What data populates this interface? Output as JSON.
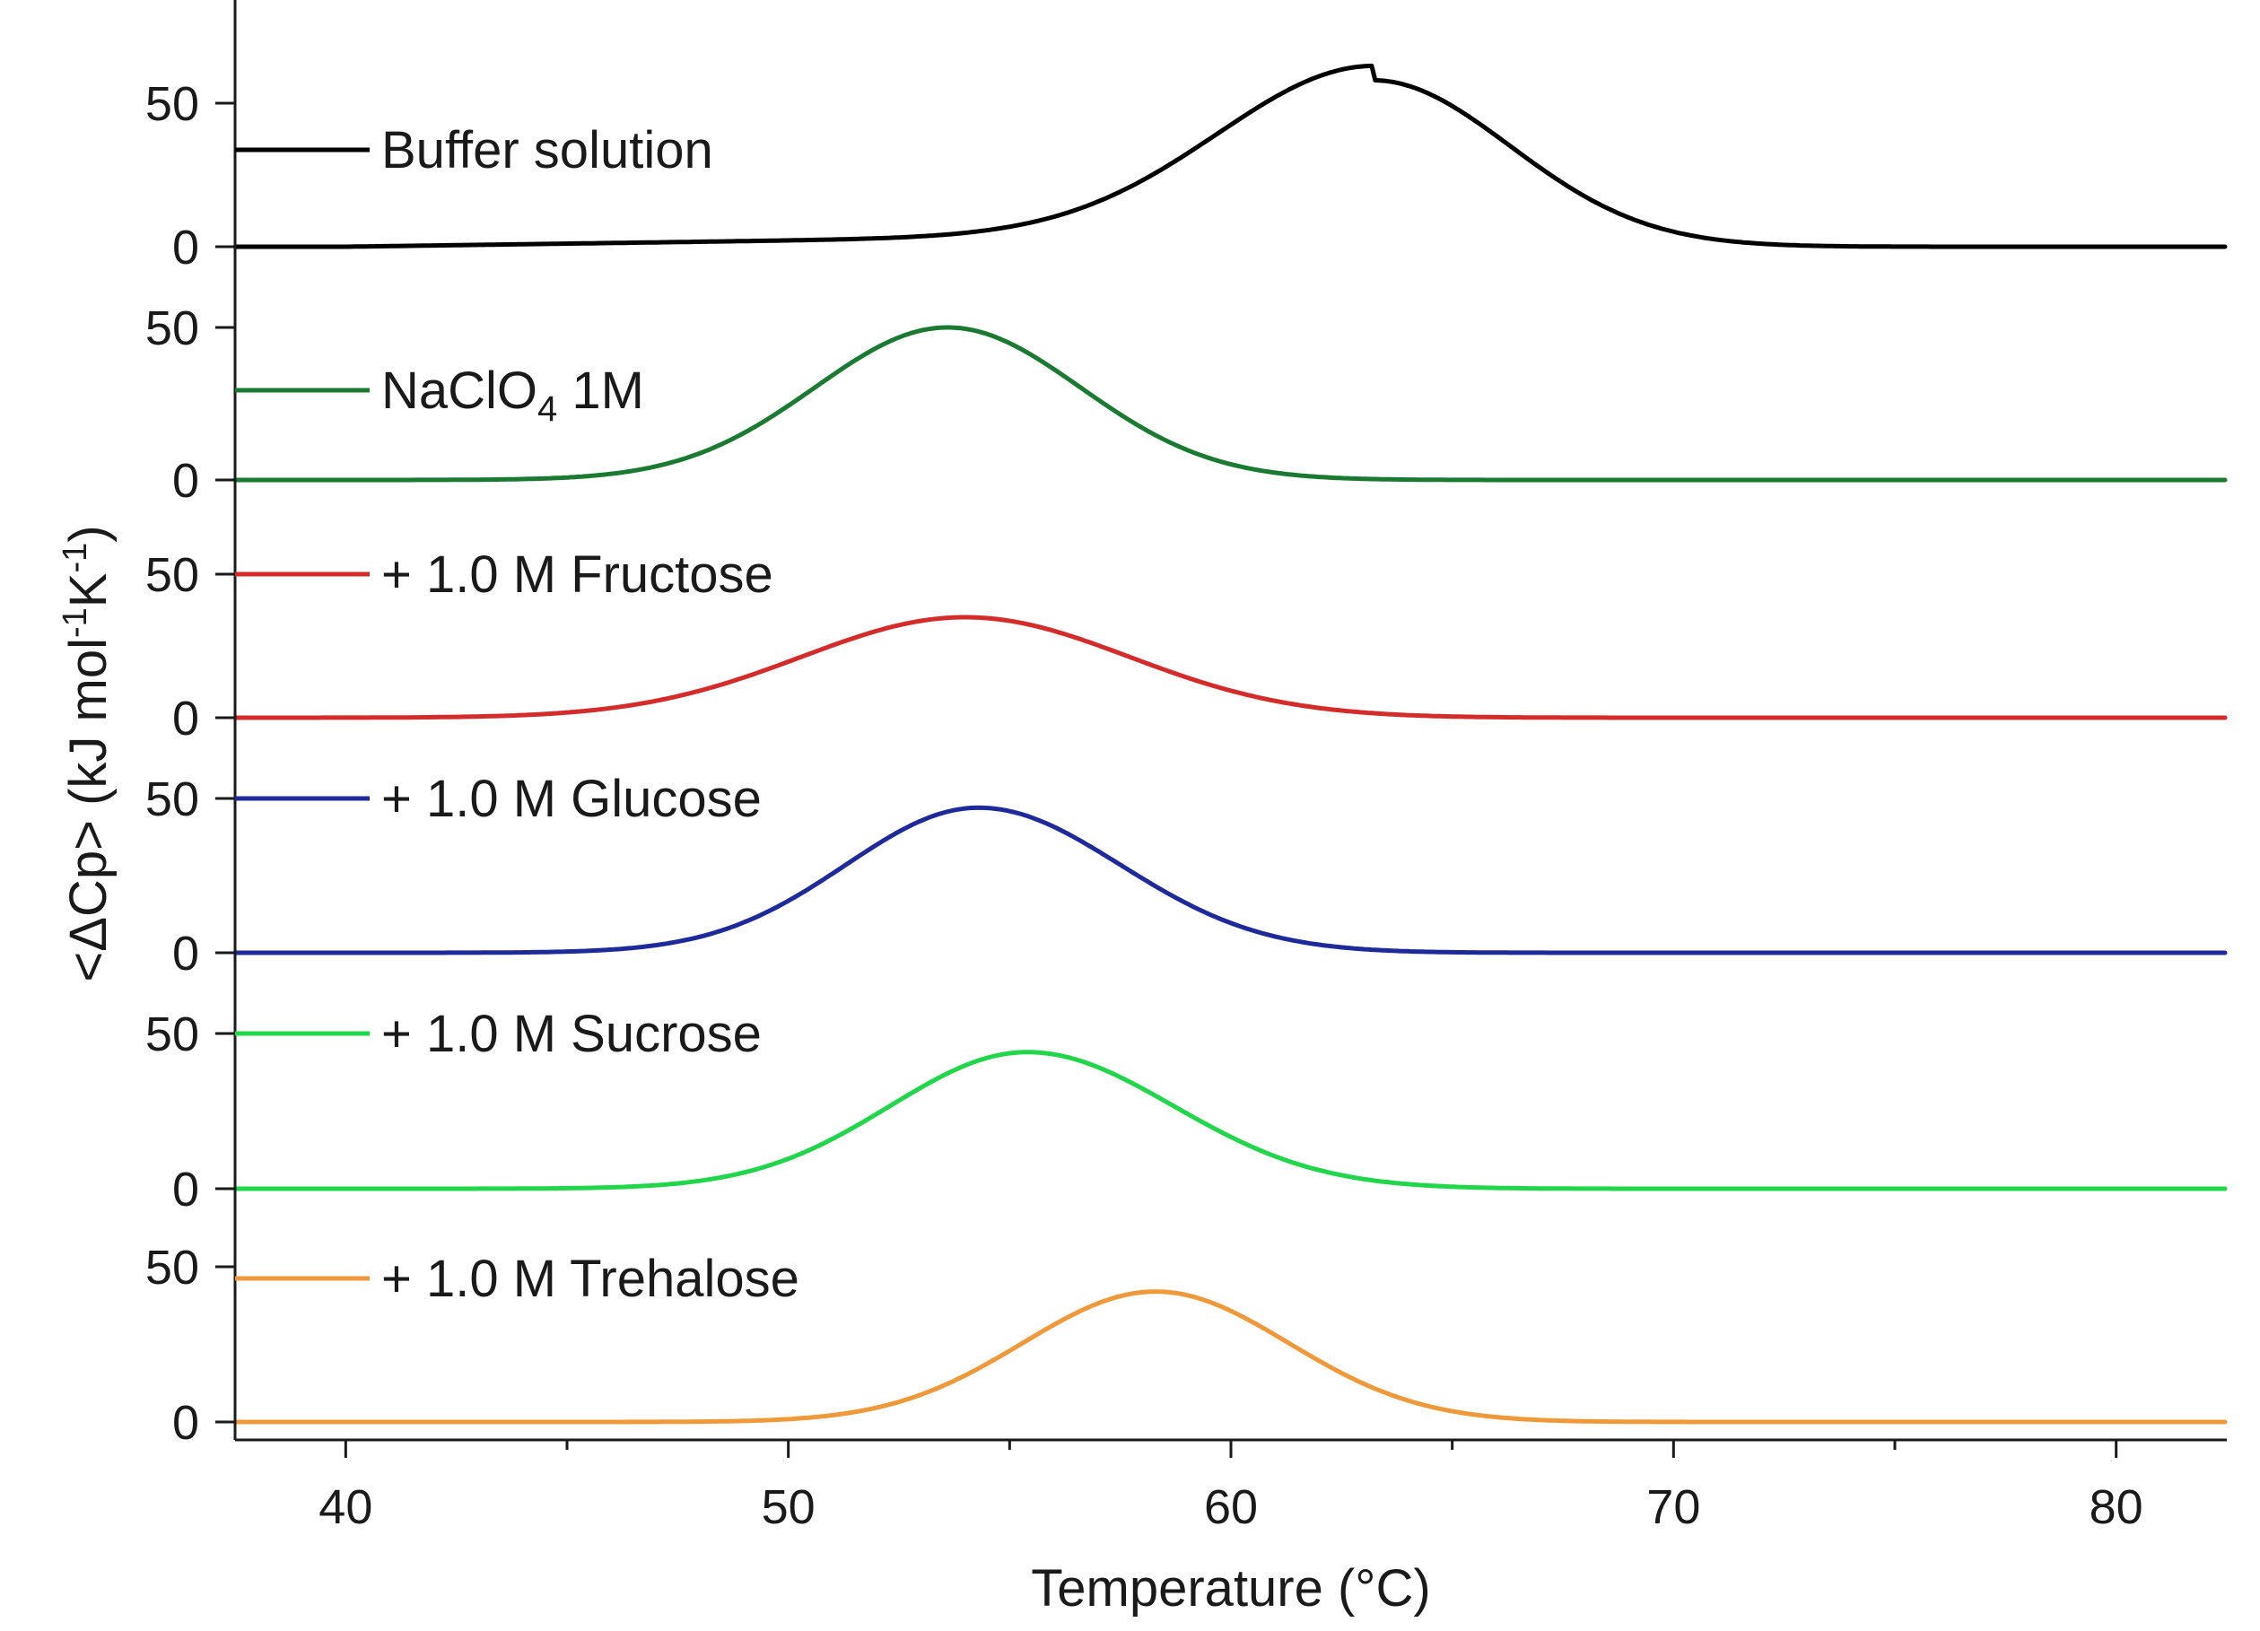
{
  "chart_data": {
    "type": "line",
    "layout": "stacked-panels",
    "xlabel": "Temperature (°C)",
    "ylabel_parts": {
      "main": "<ΔCp> (kJ mol",
      "sup1": "-1",
      "mid": "K",
      "sup2": "-1",
      "end": ")"
    },
    "xlim": [
      37.5,
      82.5
    ],
    "xticks": [
      40,
      50,
      60,
      70,
      80
    ],
    "xtick_labels": [
      "40",
      "50",
      "60",
      "70",
      "80"
    ],
    "panel_ytick_labels": [
      "0",
      "50"
    ],
    "panel_yticks": [
      0,
      50
    ],
    "series": [
      {
        "name": "Buffer solution",
        "label_main": "Buffer solution",
        "label_sub": "",
        "label_tail": "",
        "color": "#000000",
        "ylim": [
          0,
          62
        ],
        "peak_x": 63.2,
        "peak_y": 58,
        "sigma_left": 3.5,
        "sigma_right": 3.1,
        "tail_start": 40,
        "tail_amp": 5
      },
      {
        "name": "NaClO4 1M",
        "label_main": "NaClO",
        "label_sub": "4",
        "label_tail": " 1M",
        "color": "#1a7a32",
        "ylim": [
          0,
          58
        ],
        "peak_x": 53.6,
        "peak_y": 50,
        "sigma_left": 3.0,
        "sigma_right": 3.0,
        "tail_start": 0,
        "tail_amp": 0
      },
      {
        "name": "+ 1.0 M Fructose",
        "label_main": "+ 1.0 M Fructose",
        "label_sub": "",
        "label_tail": "",
        "color": "#d42b2b",
        "ylim": [
          0,
          70
        ],
        "peak_x": 54.0,
        "peak_y": 35,
        "sigma_left": 3.7,
        "sigma_right": 3.7,
        "tail_start": 0,
        "tail_amp": 0
      },
      {
        "name": "+ 1.0 M Glucose",
        "label_main": "+ 1.0 M Glucose",
        "label_sub": "",
        "label_tail": "",
        "color": "#1e2a9a",
        "ylim": [
          0,
          55
        ],
        "peak_x": 54.3,
        "peak_y": 47,
        "sigma_left": 3.0,
        "sigma_right": 3.2,
        "tail_start": 0,
        "tail_amp": 0
      },
      {
        "name": "+ 1.0 M Sucrose",
        "label_main": "+ 1.0 M Sucrose",
        "label_sub": "",
        "label_tail": "",
        "color": "#21d64a",
        "ylim": [
          0,
          60
        ],
        "peak_x": 55.4,
        "peak_y": 44,
        "sigma_left": 3.1,
        "sigma_right": 3.3,
        "tail_start": 0,
        "tail_amp": 0
      },
      {
        "name": "+ 1.0 M Trehalose",
        "label_main": "+ 1.0 M Trehalose",
        "label_sub": "",
        "label_tail": "",
        "color": "#f0993a",
        "ylim": [
          -2,
          62
        ],
        "peak_x": 58.3,
        "peak_y": 42,
        "sigma_left": 3.0,
        "sigma_right": 3.0,
        "tail_start": 0,
        "tail_amp": 0
      }
    ]
  }
}
